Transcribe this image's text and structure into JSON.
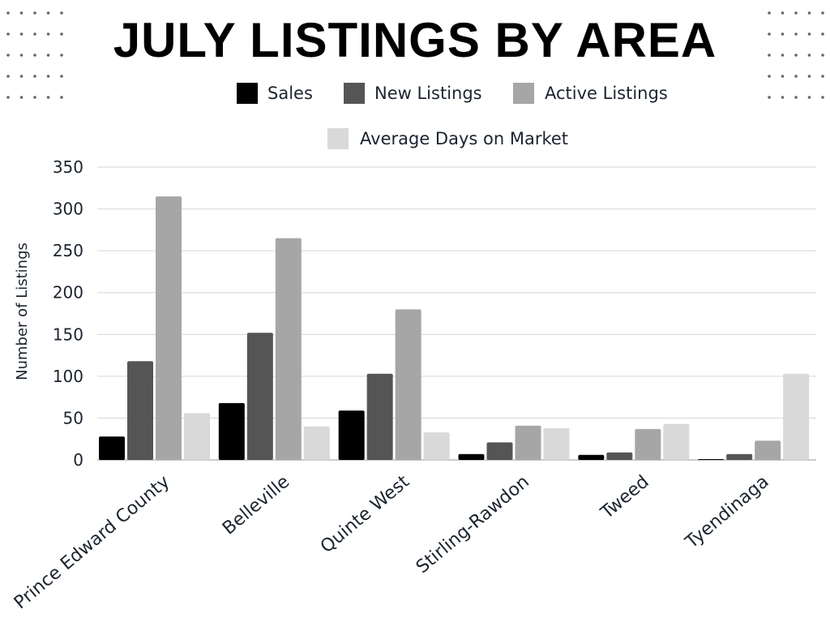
{
  "chart_data": {
    "type": "bar",
    "title": "JULY LISTINGS BY AREA",
    "ylabel": "Number of Listings",
    "xlabel": "",
    "ylim": [
      0,
      350
    ],
    "yticks": [
      "0",
      "50",
      "100",
      "150",
      "200",
      "250",
      "300",
      "350"
    ],
    "grid": true,
    "legend_position": "top",
    "categories": [
      "Prince Edward County",
      "Belleville",
      "Quinte West",
      "Stirling-Rawdon",
      "Tweed",
      "Tyendinaga"
    ],
    "series": [
      {
        "name": "Sales",
        "color": "#000000",
        "values": [
          28,
          68,
          59,
          7,
          6,
          1
        ]
      },
      {
        "name": "New Listings",
        "color": "#555555",
        "values": [
          118,
          152,
          103,
          21,
          9,
          7
        ]
      },
      {
        "name": "Active Listings",
        "color": "#a6a6a6",
        "values": [
          315,
          265,
          180,
          41,
          37,
          23
        ]
      },
      {
        "name": "Average Days on Market",
        "color": "#d9d9d9",
        "values": [
          56,
          40,
          33,
          38,
          43,
          103
        ]
      }
    ]
  }
}
